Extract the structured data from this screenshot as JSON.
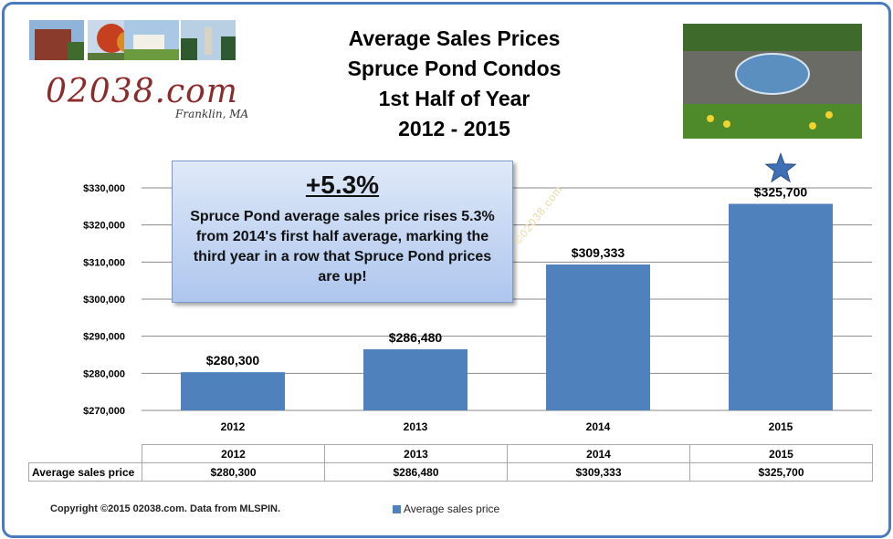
{
  "header": {
    "title_lines": [
      "Average Sales Prices",
      "Spruce Pond Condos",
      "1st Half of Year",
      "2012 - 2015"
    ],
    "logo_text": "02038.com",
    "logo_sub": "Franklin, MA"
  },
  "callout": {
    "headline": "+5.3%",
    "text": "Spruce Pond average sales price rises 5.3% from 2014's first half average, marking the third year in a row that Spruce Pond prices are up!"
  },
  "watermark": "©02038.com",
  "table": {
    "row_label": "Average sales price",
    "years": [
      "2012",
      "2013",
      "2014",
      "2015"
    ],
    "values": [
      "$280,300",
      "$286,480",
      "$309,333",
      "$325,700"
    ]
  },
  "footer": {
    "copyright": "Copyright ©2015 02038.com. Data from MLSPIN.",
    "legend_label": "Average sales price"
  },
  "colors": {
    "bar": "#4f81bd",
    "star": "#3f6fb5",
    "border": "#4a7abf"
  },
  "chart_data": {
    "type": "bar",
    "categories": [
      "2012",
      "2013",
      "2014",
      "2015"
    ],
    "series": [
      {
        "name": "Average sales price",
        "values": [
          280300,
          286480,
          309333,
          325700
        ]
      }
    ],
    "data_labels": [
      "$280,300",
      "$286,480",
      "$309,333",
      "$325,700"
    ],
    "ylim": [
      270000,
      330000
    ],
    "yticks": [
      270000,
      280000,
      290000,
      300000,
      310000,
      320000,
      330000
    ],
    "ytick_labels": [
      "$270,000",
      "$280,000",
      "$290,000",
      "$300,000",
      "$310,000",
      "$320,000",
      "$330,000"
    ],
    "grid": true,
    "legend": "bottom",
    "highlight": {
      "category": "2015",
      "marker": "star"
    }
  }
}
